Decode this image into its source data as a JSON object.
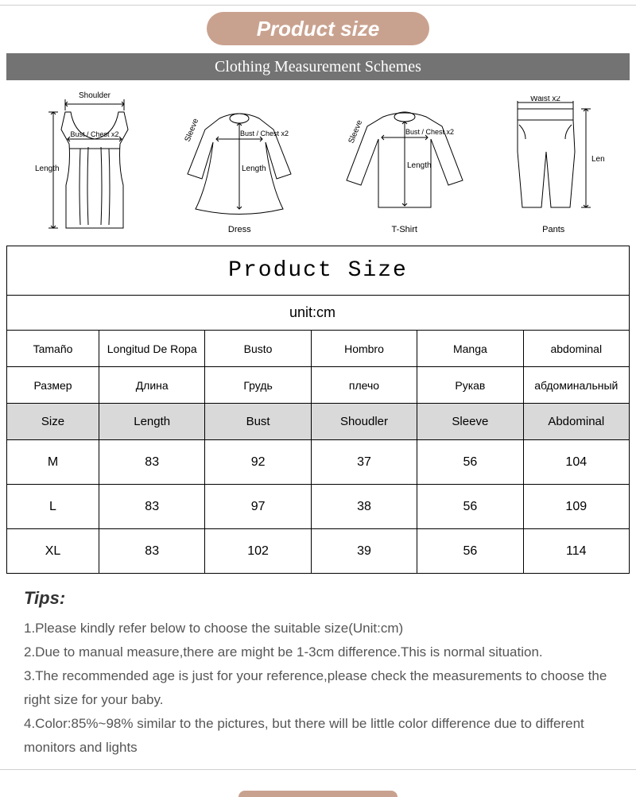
{
  "colors": {
    "pill_bg": "#c9a28f",
    "pill_text": "#ffffff",
    "schemes_bg": "#737373",
    "schemes_text": "#ffffff",
    "table_border": "#000000",
    "header_row_bg": "#d9d9d9",
    "page_bg": "#ffffff",
    "text": "#000000",
    "tips_text": "#555555"
  },
  "pill_label": "Product size",
  "schemes_label": "Clothing Measurement Schemes",
  "diagrams": {
    "garments": [
      "",
      "Dress",
      "T-Shirt",
      "Pants"
    ],
    "measure_labels": {
      "shoulder": "Shoulder",
      "bust": "Bust / Chest x2",
      "length": "Length",
      "sleeve": "Sleeve",
      "waist": "Waist x2"
    }
  },
  "table": {
    "title": "Product Size",
    "unit": "unit:cm",
    "columns_es": [
      "Tamaño",
      "Longitud De Ropa",
      "Busto",
      "Hombro",
      "Manga",
      "abdominal"
    ],
    "columns_ru": [
      "Размер",
      "Длина",
      "Грудь",
      "плечо",
      "Рукав",
      "абдоминальный"
    ],
    "columns_en": [
      "Size",
      "Length",
      "Bust",
      "Shoudler",
      "Sleeve",
      "Abdominal"
    ],
    "rows": [
      {
        "size": "M",
        "values": [
          "83",
          "92",
          "37",
          "56",
          "104"
        ]
      },
      {
        "size": "L",
        "values": [
          "83",
          "97",
          "38",
          "56",
          "109"
        ]
      },
      {
        "size": "XL",
        "values": [
          "83",
          "102",
          "39",
          "56",
          "114"
        ]
      }
    ]
  },
  "tips": {
    "title": "Tips:",
    "lines": [
      "1.Please kindly refer below to choose the suitable size(Unit:cm)",
      "2.Due to manual measure,there are might be 1-3cm difference.This is normal situation.",
      "3.The recommended age is just for your reference,please check the measurements to choose the right size for your baby.",
      "4.Color:85%~98% similar to the pictures, but there will be  little color difference due to different monitors and lights"
    ]
  }
}
